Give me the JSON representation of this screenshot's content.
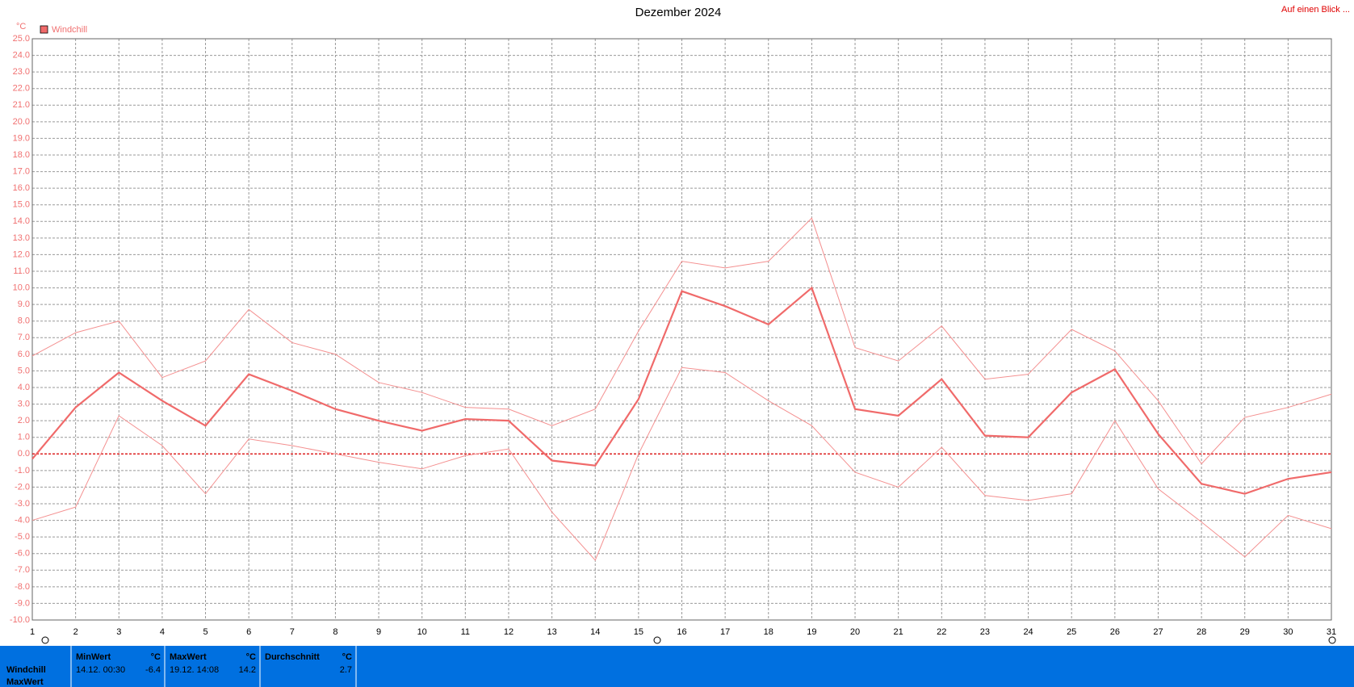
{
  "chart_data": {
    "type": "line",
    "title": "Dezember 2024",
    "unit": "°C",
    "link": "Auf einen Blick ...",
    "x": [
      1,
      2,
      3,
      4,
      5,
      6,
      7,
      8,
      9,
      10,
      11,
      12,
      13,
      14,
      15,
      16,
      17,
      18,
      19,
      20,
      21,
      22,
      23,
      24,
      25,
      26,
      27,
      28,
      29,
      30,
      31
    ],
    "xlim": [
      1,
      31
    ],
    "xticks": [
      1,
      2,
      3,
      4,
      5,
      6,
      7,
      8,
      9,
      10,
      11,
      12,
      13,
      14,
      15,
      16,
      17,
      18,
      19,
      20,
      21,
      22,
      23,
      24,
      25,
      26,
      27,
      28,
      29,
      30,
      31
    ],
    "ylim": [
      -10,
      25
    ],
    "yticks": [
      {
        "value": 25,
        "label": "25.0"
      },
      {
        "value": 24,
        "label": "24.0"
      },
      {
        "value": 23,
        "label": "23.0"
      },
      {
        "value": 22,
        "label": "22.0"
      },
      {
        "value": 21,
        "label": "21.0"
      },
      {
        "value": 20,
        "label": "20.0"
      },
      {
        "value": 19,
        "label": "19.0"
      },
      {
        "value": 18,
        "label": "18.0"
      },
      {
        "value": 17,
        "label": "17.0"
      },
      {
        "value": 16,
        "label": "16.0"
      },
      {
        "value": 15,
        "label": "15.0"
      },
      {
        "value": 14,
        "label": "14.0"
      },
      {
        "value": 13,
        "label": "13.0"
      },
      {
        "value": 12,
        "label": "12.0"
      },
      {
        "value": 11,
        "label": "11.0"
      },
      {
        "value": 10,
        "label": "10.0"
      },
      {
        "value": 9,
        "label": "9.0"
      },
      {
        "value": 8,
        "label": "8.0"
      },
      {
        "value": 7,
        "label": "7.0"
      },
      {
        "value": 6,
        "label": "6.0"
      },
      {
        "value": 5,
        "label": "5.0"
      },
      {
        "value": 4,
        "label": "4.0"
      },
      {
        "value": 3,
        "label": "3.0"
      },
      {
        "value": 2,
        "label": "2.0"
      },
      {
        "value": 1,
        "label": "1.0"
      },
      {
        "value": 0,
        "label": "0.0"
      },
      {
        "value": -1,
        "label": "-1.0"
      },
      {
        "value": -2,
        "label": "-2.0"
      },
      {
        "value": -3,
        "label": "-3.0"
      },
      {
        "value": -4,
        "label": "-4.0"
      },
      {
        "value": -5,
        "label": "-5.0"
      },
      {
        "value": -6,
        "label": "-6.0"
      },
      {
        "value": -7,
        "label": "-7.0"
      },
      {
        "value": -8,
        "label": "-8.0"
      },
      {
        "value": -9,
        "label": "-9.0"
      },
      {
        "value": -10,
        "label": "-10.0"
      }
    ],
    "grid": true,
    "reference_line": 0,
    "series": [
      {
        "name": "Windchill",
        "color": "#f06a6a",
        "values": [
          -0.3,
          2.8,
          4.9,
          3.2,
          1.7,
          4.8,
          3.8,
          2.7,
          2.0,
          1.4,
          2.1,
          2.0,
          -0.4,
          -0.7,
          3.3,
          9.8,
          8.9,
          7.8,
          10.0,
          2.7,
          2.3,
          4.5,
          1.1,
          1.0,
          3.7,
          5.1,
          1.2,
          -1.8,
          -2.4,
          -1.5,
          -1.1
        ]
      },
      {
        "color": "#f49090",
        "values": [
          5.9,
          7.3,
          8.0,
          4.6,
          5.6,
          8.7,
          6.7,
          6.0,
          4.3,
          3.7,
          2.8,
          2.7,
          1.7,
          2.7,
          7.4,
          11.6,
          11.2,
          11.6,
          14.2,
          6.4,
          5.6,
          7.7,
          4.5,
          4.8,
          7.5,
          6.2,
          3.2,
          -0.6,
          2.2,
          2.8,
          3.6
        ]
      },
      {
        "color": "#f49090",
        "values": [
          -4.0,
          -3.2,
          2.3,
          0.5,
          -2.4,
          0.9,
          0.5,
          0.0,
          -0.5,
          -0.9,
          -0.1,
          0.3,
          -3.5,
          -6.4,
          0.0,
          5.2,
          4.9,
          3.2,
          1.7,
          -1.1,
          -2.0,
          0.4,
          -2.5,
          -2.8,
          -2.4,
          2.0,
          -2.1,
          -4.1,
          -6.2,
          -3.7,
          -4.5
        ]
      }
    ]
  },
  "table": {
    "row_labels": [
      "Windchill",
      "MaxWert"
    ],
    "columns": [
      {
        "header": "MinWert",
        "unit": "°C",
        "time": "14.12. 00:30",
        "value": -6.4
      },
      {
        "header": "MaxWert",
        "unit": "°C",
        "time": "19.12. 14:08",
        "value": 14.2
      },
      {
        "header": "Durchschnitt",
        "unit": "°C",
        "value": 2.7
      }
    ]
  }
}
